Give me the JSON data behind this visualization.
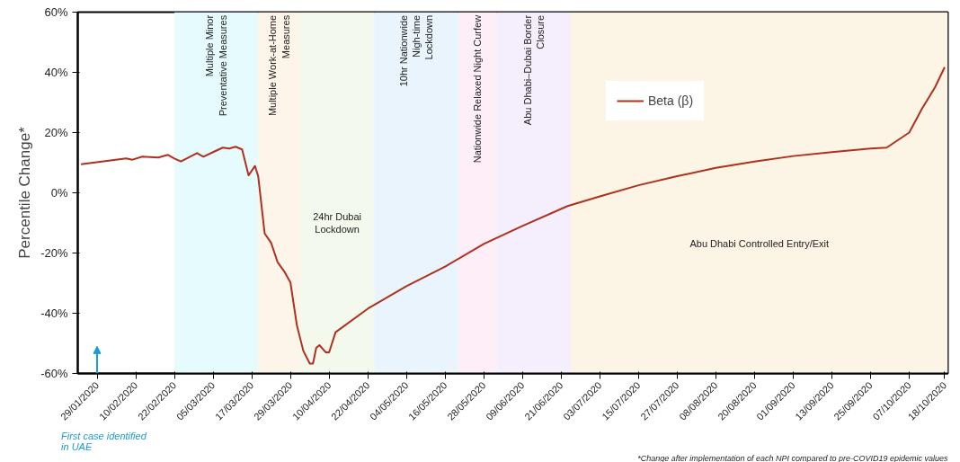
{
  "chart_data": {
    "type": "line",
    "ylabel": "Percentile Change*",
    "legend": "top right",
    "marker": "none",
    "line_style": "solid",
    "grid": false,
    "xlim": [
      "2020-01-23",
      "2020-10-19"
    ],
    "ylim": [
      -60,
      60
    ],
    "yticks": [
      {
        "value": -60,
        "label": "-60%"
      },
      {
        "value": -40,
        "label": "-40%"
      },
      {
        "value": -20,
        "label": "-20%"
      },
      {
        "value": 0,
        "label": "0%"
      },
      {
        "value": 20,
        "label": "20%"
      },
      {
        "value": 40,
        "label": "40%"
      },
      {
        "value": 60,
        "label": "60%"
      }
    ],
    "xticks": [
      {
        "value": "2020-01-29",
        "label": "29/01/2020"
      },
      {
        "value": "2020-02-10",
        "label": "10/02/2020"
      },
      {
        "value": "2020-02-22",
        "label": "22/02/2020"
      },
      {
        "value": "2020-03-05",
        "label": "05/03/2020"
      },
      {
        "value": "2020-03-17",
        "label": "17/03/2020"
      },
      {
        "value": "2020-03-29",
        "label": "29/03/2020"
      },
      {
        "value": "2020-04-10",
        "label": "10/04/2020"
      },
      {
        "value": "2020-04-22",
        "label": "22/04/2020"
      },
      {
        "value": "2020-05-04",
        "label": "04/05/2020"
      },
      {
        "value": "2020-05-16",
        "label": "16/05/2020"
      },
      {
        "value": "2020-05-28",
        "label": "28/05/2020"
      },
      {
        "value": "2020-06-09",
        "label": "09/06/2020"
      },
      {
        "value": "2020-06-21",
        "label": "21/06/2020"
      },
      {
        "value": "2020-07-03",
        "label": "03/07/2020"
      },
      {
        "value": "2020-07-15",
        "label": "15/07/2020"
      },
      {
        "value": "2020-07-27",
        "label": "27/07/2020"
      },
      {
        "value": "2020-08-08",
        "label": "08/08/2020"
      },
      {
        "value": "2020-08-20",
        "label": "20/08/2020"
      },
      {
        "value": "2020-09-01",
        "label": "01/09/2020"
      },
      {
        "value": "2020-09-13",
        "label": "13/09/2020"
      },
      {
        "value": "2020-09-25",
        "label": "25/09/2020"
      },
      {
        "value": "2020-10-07",
        "label": "07/10/2020"
      },
      {
        "value": "2020-10-18",
        "label": "18/10/2020"
      }
    ],
    "series": [
      {
        "name": "Beta (β)",
        "color": "#b0301e",
        "x": [
          "2020-01-24",
          "2020-02-07",
          "2020-02-09",
          "2020-02-12",
          "2020-02-17",
          "2020-02-20",
          "2020-02-22",
          "2020-02-24",
          "2020-02-29",
          "2020-03-02",
          "2020-03-05",
          "2020-03-08",
          "2020-03-10",
          "2020-03-12",
          "2020-03-14",
          "2020-03-16",
          "2020-03-18",
          "2020-03-19",
          "2020-03-21",
          "2020-03-23",
          "2020-03-25",
          "2020-03-27",
          "2020-03-29",
          "2020-03-31",
          "2020-04-02",
          "2020-04-04",
          "2020-04-05",
          "2020-04-06",
          "2020-04-07",
          "2020-04-09",
          "2020-04-10",
          "2020-04-12",
          "2020-04-22",
          "2020-05-04",
          "2020-05-16",
          "2020-05-28",
          "2020-06-09",
          "2020-06-23",
          "2020-07-03",
          "2020-07-15",
          "2020-07-27",
          "2020-08-08",
          "2020-08-20",
          "2020-09-01",
          "2020-09-13",
          "2020-09-25",
          "2020-09-30",
          "2020-10-07",
          "2020-10-11",
          "2020-10-15",
          "2020-10-18"
        ],
        "values": [
          9.5,
          11.4,
          11,
          12,
          11.7,
          12.6,
          11.4,
          10.4,
          13.2,
          12,
          13.5,
          15,
          14.7,
          15.3,
          14.4,
          5.8,
          8.9,
          5.5,
          -13.5,
          -16.6,
          -23,
          -26,
          -29.8,
          -44,
          -52.5,
          -56.7,
          -56.7,
          -51.5,
          -50.6,
          -53,
          -53,
          -46.3,
          -38.5,
          -31,
          -24.5,
          -17,
          -11,
          -4.4,
          -1.2,
          2.5,
          5.5,
          8.3,
          10.4,
          12.2,
          13.5,
          14.7,
          15,
          20,
          28,
          35,
          41.7
        ]
      }
    ],
    "bands": [
      {
        "axis": "x",
        "from": "2020-02-22",
        "to": "2020-03-19",
        "label": "Multiple Minor\nPreventative Measures",
        "color": "#e6fbfd"
      },
      {
        "axis": "x",
        "from": "2020-03-19",
        "to": "2020-04-01",
        "label": "Multiple Work-at-Home\nMeasures",
        "color": "#fdf5ea"
      },
      {
        "axis": "x",
        "from": "2020-04-01",
        "to": "2020-04-24",
        "label": "24hr Dubai\nLockdown",
        "color": "#f4f9ee"
      },
      {
        "axis": "x",
        "from": "2020-04-24",
        "to": "2020-05-20",
        "label": "10hr Nationwide\nNigh-time\nLockdown",
        "color": "#e9f4fd"
      },
      {
        "axis": "x",
        "from": "2020-05-20",
        "to": "2020-06-01",
        "label": "Nationwide Relaxed Night Curfew",
        "color": "#fdeef8"
      },
      {
        "axis": "x",
        "from": "2020-06-01",
        "to": "2020-06-24",
        "label": "Abu Dhabi–Dubai Border\nClosure",
        "color": "#f4eefd"
      },
      {
        "axis": "x",
        "from": "2020-06-24",
        "to": "2020-10-19",
        "label": "Abu Dhabi Controlled Entry/Exit",
        "color": "#fcf4e4"
      }
    ],
    "annotations": [
      "First case identified\nin UAE",
      "*Change after implementation of each NPI compared to pre-COVID19 epidemic values"
    ]
  }
}
